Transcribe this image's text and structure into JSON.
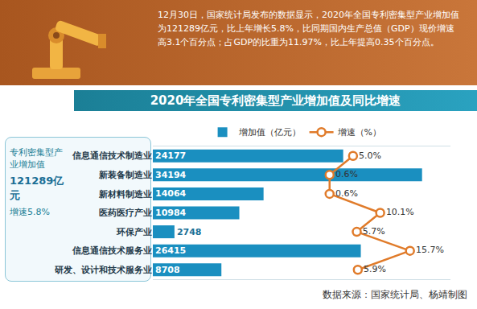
{
  "header": {
    "text": "12月30日，国家统计局发布的数据显示，2020年全国专利密集型产业增加值为121289亿元，比上年增长5.8%，比同期国内生产总值（GDP）现价增速高3.1个百分点；占GDP的比重为11.97%，比上年提高0.35个百分点。"
  },
  "summary": {
    "label": "专利密集型产业增加值",
    "value_text": "121289亿元",
    "growth_text": "增速5.8%"
  },
  "source": "数据来源：国家统计局、杨靖制图",
  "chart_data": {
    "type": "bar",
    "title": "2020年全国专利密集型产业增加值及同比增速",
    "orientation": "horizontal",
    "categories": [
      "信息通信技术制造业",
      "新装备制造业",
      "新材料制造业",
      "医药医疗产业",
      "环保产业",
      "信息通信技术服务业",
      "研发、设计和技术服务业"
    ],
    "series": [
      {
        "name": "增加值（亿元）",
        "type": "bar",
        "color": "#1a8fc0",
        "values": [
          24177,
          34194,
          14064,
          10984,
          2748,
          26415,
          8708
        ],
        "data_labels": true
      },
      {
        "name": "增速（%）",
        "type": "line",
        "marker": "circle",
        "color": "#e07b2a",
        "axis": "x2",
        "values": [
          5.0,
          0.6,
          0.6,
          10.1,
          5.7,
          15.7,
          5.9
        ],
        "value_labels": [
          "5.0%",
          "0.6%",
          "0.6%",
          "10.1%",
          "5.7%",
          "15.7%",
          "5.9%"
        ],
        "data_labels": true
      }
    ],
    "xlim": [
      0,
      37800
    ],
    "x2lim": [
      -32.6,
      23.3
    ],
    "tick_labels": "y",
    "grid": false,
    "legend": "top"
  }
}
